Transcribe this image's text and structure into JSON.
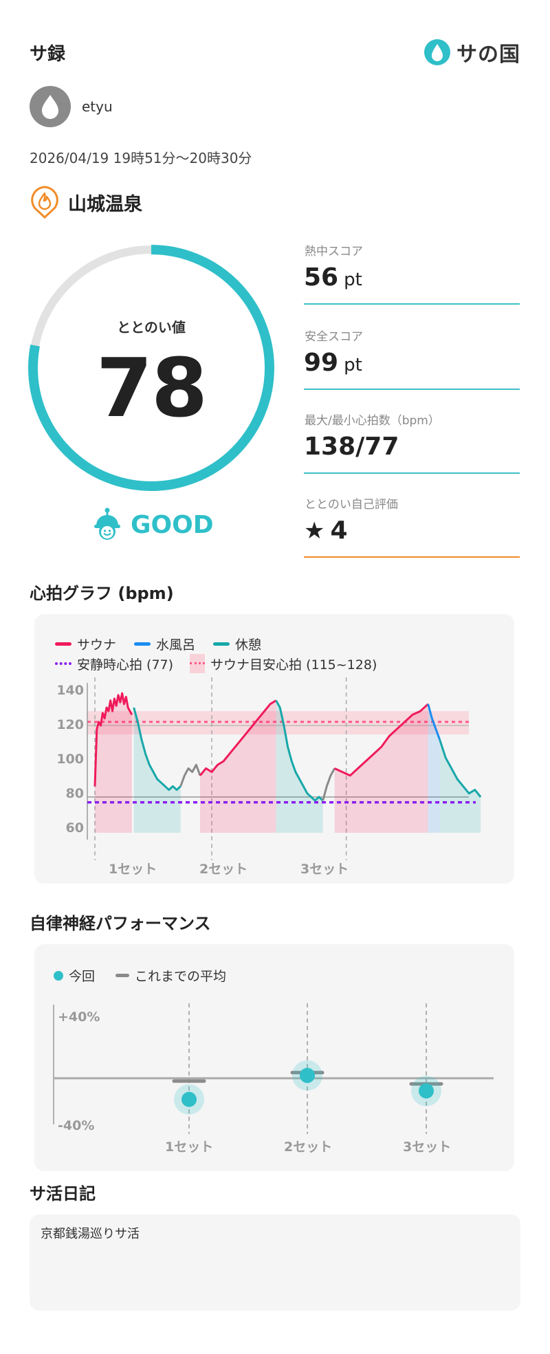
{
  "header": {
    "title": "サ録",
    "logo_text": "サの国"
  },
  "user": {
    "name": "etyu"
  },
  "session": {
    "time": "2026/04/19 19時51分〜20時30分"
  },
  "facility": {
    "name": "山城温泉"
  },
  "gauge": {
    "label": "ととのい値",
    "value": "78",
    "fraction": 0.78,
    "rating": "GOOD"
  },
  "metrics": [
    {
      "label": "熱中スコア",
      "value": "56",
      "unit": "pt"
    },
    {
      "label": "安全スコア",
      "value": "99",
      "unit": "pt"
    },
    {
      "label": "最大/最小心拍数（bpm）",
      "value": "138/77",
      "unit": ""
    },
    {
      "label": "ととのい自己評価",
      "value": "4",
      "unit": ""
    }
  ],
  "heart_section": {
    "title": "心拍グラフ (bpm)"
  },
  "heart_legend": {
    "sauna": "サウナ",
    "cold": "水風呂",
    "rest": "休憩",
    "resting_hr": "安静時心拍 (77)",
    "target_hr": "サウナ目安心拍 (115~128)"
  },
  "colors": {
    "sauna": "#f01a5a",
    "cold": "#1a8cf0",
    "rest": "#17a7a9",
    "idle": "#8a8a8a",
    "accent": "#2fbfc9",
    "orange": "#f28c28",
    "purple": "#8b1ff0"
  },
  "nerve_section": {
    "title": "自律神経パフォーマンス"
  },
  "nerve_legend": {
    "current": "今回",
    "average": "これまでの平均"
  },
  "diary": {
    "title": "サ活日記",
    "text": "京都銭湯巡りサ活"
  },
  "chart_data": [
    {
      "type": "line",
      "title": "心拍グラフ (bpm)",
      "ylim": [
        60,
        140
      ],
      "yticks": [
        "140",
        "120",
        "100",
        "80",
        "60"
      ],
      "set_labels": [
        "1セット",
        "2セット",
        "3セット"
      ],
      "resting_hr": 77,
      "target_band": [
        115,
        128
      ],
      "series": [
        {
          "name": "サウナ",
          "phase": "sauna",
          "x": [
            0,
            1,
            2,
            3,
            4,
            5,
            6,
            7,
            8,
            9,
            10,
            11,
            12,
            13,
            14,
            15,
            16,
            17,
            18,
            19
          ],
          "y": [
            86,
            118,
            122,
            120,
            127,
            124,
            130,
            128,
            134,
            128,
            135,
            131,
            137,
            133,
            138,
            132,
            136,
            130,
            128,
            126
          ]
        },
        {
          "name": "休憩",
          "phase": "rest",
          "x": [
            20,
            22,
            24,
            26,
            28,
            30,
            32,
            34,
            36,
            38,
            40,
            42,
            44
          ],
          "y": [
            130,
            122,
            112,
            104,
            98,
            94,
            90,
            88,
            86,
            84,
            86,
            84,
            86
          ]
        },
        {
          "name": "",
          "phase": "idle",
          "x": [
            44,
            46,
            48,
            50,
            52,
            54
          ],
          "y": [
            86,
            92,
            96,
            94,
            98,
            92
          ]
        },
        {
          "name": "サウナ",
          "phase": "sauna",
          "x": [
            54,
            57,
            60,
            63,
            66,
            69,
            72,
            75,
            78,
            81,
            84,
            87,
            90,
            93
          ],
          "y": [
            92,
            96,
            94,
            98,
            100,
            104,
            108,
            112,
            116,
            120,
            124,
            128,
            132,
            134
          ]
        },
        {
          "name": "休憩",
          "phase": "rest",
          "x": [
            93,
            95,
            97,
            99,
            101,
            103,
            105,
            107,
            109,
            111,
            113,
            115,
            117
          ],
          "y": [
            134,
            130,
            120,
            108,
            100,
            94,
            90,
            86,
            82,
            80,
            78,
            80,
            78
          ]
        },
        {
          "name": "",
          "phase": "idle",
          "x": [
            117,
            119,
            121,
            123
          ],
          "y": [
            78,
            86,
            92,
            96
          ]
        },
        {
          "name": "サウナ",
          "phase": "sauna",
          "x": [
            123,
            127,
            131,
            135,
            139,
            143,
            147,
            151,
            155,
            159,
            163,
            167,
            171
          ],
          "y": [
            96,
            94,
            92,
            96,
            100,
            104,
            108,
            114,
            118,
            122,
            126,
            128,
            132
          ]
        },
        {
          "name": "水風呂",
          "phase": "cold",
          "x": [
            171,
            173,
            175,
            177
          ],
          "y": [
            132,
            124,
            118,
            112
          ]
        },
        {
          "name": "休憩",
          "phase": "rest",
          "x": [
            177,
            180,
            183,
            186,
            189,
            192,
            195,
            198
          ],
          "y": [
            112,
            102,
            96,
            90,
            86,
            82,
            84,
            80
          ]
        }
      ],
      "x_range": [
        0,
        280
      ],
      "set_starts": [
        0,
        60,
        129
      ]
    },
    {
      "type": "scatter",
      "title": "自律神経パフォーマンス",
      "ylim": [
        -40,
        40
      ],
      "yticks": [
        "+40%",
        "-40%"
      ],
      "categories": [
        "1セット",
        "2セット",
        "3セット"
      ],
      "series": [
        {
          "name": "今回",
          "values": [
            -15,
            2,
            -9
          ]
        },
        {
          "name": "これまでの平均",
          "values": [
            -2,
            4,
            -4
          ]
        }
      ]
    }
  ]
}
